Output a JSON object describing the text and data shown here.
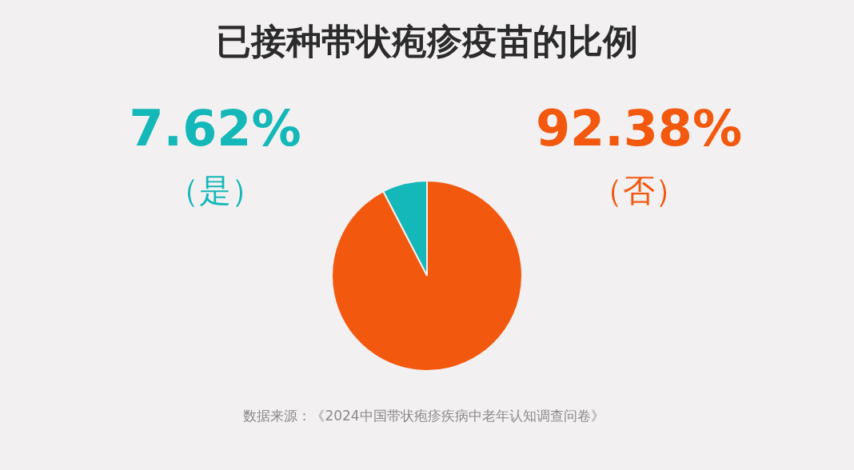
{
  "chart_data": {
    "type": "pie",
    "title": "已接种带状疱疹疫苗的比例",
    "categories": [
      "（是）",
      "（否）"
    ],
    "values": [
      7.62,
      92.38
    ],
    "colors": [
      "#15b8b8",
      "#f2590f"
    ],
    "value_labels": [
      "7.62%",
      "92.38%"
    ],
    "annotations": [
      "数据来源：《2024中国带状疱疹疾病中老年认知调查问卷》"
    ]
  }
}
